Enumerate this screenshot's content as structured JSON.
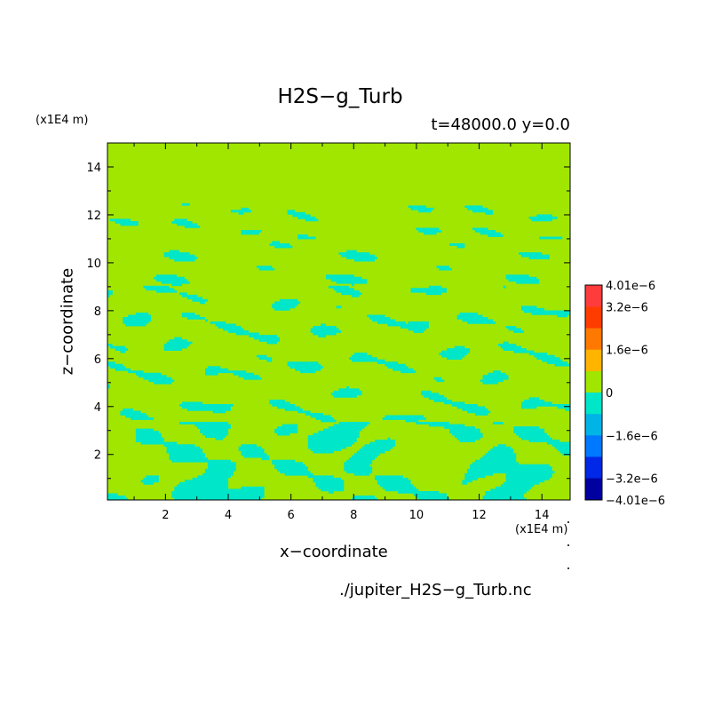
{
  "chart_data": {
    "type": "heatmap",
    "title": "H2S−g_Turb",
    "subtitle": "t=48000.0 y=0.0",
    "xlabel": "x−coordinate",
    "ylabel": "z−coordinate",
    "x_unit": "(x1E4 m)",
    "y_unit": "(x1E4 m)",
    "xlim": [
      0.15,
      14.9
    ],
    "ylim": [
      0.1,
      15
    ],
    "x_ticks": [
      2,
      4,
      6,
      8,
      10,
      12,
      14
    ],
    "y_ticks": [
      2,
      4,
      6,
      8,
      10,
      12,
      14
    ],
    "colorbar": {
      "labels": [
        "4.01e−6",
        "3.2e−6",
        "1.6e−6",
        "0",
        "−1.6e−6",
        "−3.2e−6",
        "−4.01e−6"
      ],
      "label_values": [
        4.01e-06,
        3.2e-06,
        1.6e-06,
        0,
        -1.6e-06,
        -3.2e-06,
        -4.01e-06
      ],
      "bands": [
        {
          "min": 3.2e-06,
          "max": 4.01e-06,
          "color": "#ff3c3c"
        },
        {
          "min": 2.4e-06,
          "max": 3.2e-06,
          "color": "#ff3c00"
        },
        {
          "min": 1.6e-06,
          "max": 2.4e-06,
          "color": "#ff7800"
        },
        {
          "min": 8e-07,
          "max": 1.6e-06,
          "color": "#ffb400"
        },
        {
          "min": 0,
          "max": 8e-07,
          "color": "#a0e600"
        },
        {
          "min": -8e-07,
          "max": 0,
          "color": "#00e6c8"
        },
        {
          "min": -1.6e-06,
          "max": -8e-07,
          "color": "#00b4e6"
        },
        {
          "min": -2.4e-06,
          "max": -1.6e-06,
          "color": "#0078ff"
        },
        {
          "min": -3.2e-06,
          "max": -2.4e-06,
          "color": "#0028e6"
        },
        {
          "min": -4.01e-06,
          "max": -3.2e-06,
          "color": "#0000a0"
        }
      ]
    },
    "field": {
      "positive_color": "#a0e600",
      "negative_color": "#00e6c8",
      "description_levels": [
        0,
        -8e-07
      ]
    }
  },
  "footer": {
    "filename": "./jupiter_H2S−g_Turb.nc"
  }
}
